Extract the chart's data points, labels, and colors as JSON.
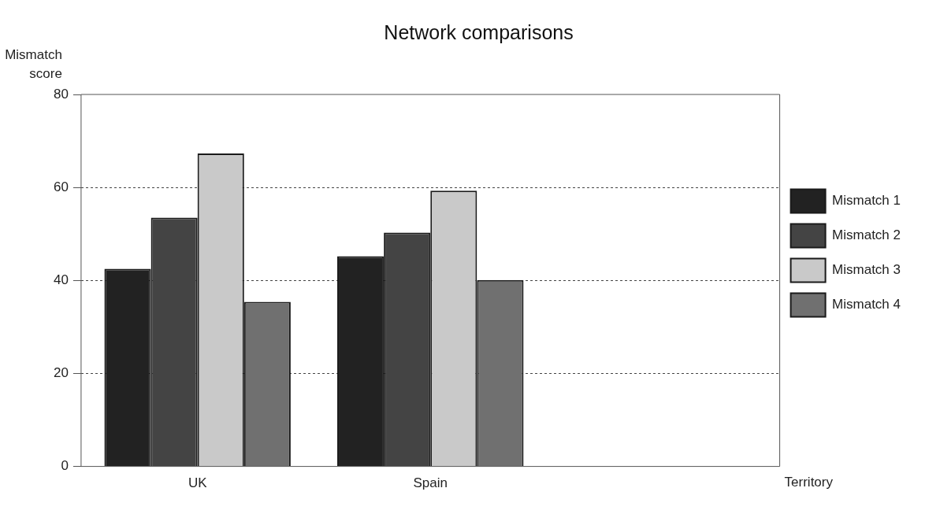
{
  "chart_data": {
    "type": "bar",
    "title": "Network comparisons",
    "xlabel": "Territory",
    "ylabel": "Mismatch score",
    "categories": [
      "UK",
      "Spain",
      null
    ],
    "series": [
      {
        "name": "Mismatch 1",
        "color": "#222222",
        "values": [
          42.5,
          45.2,
          null
        ]
      },
      {
        "name": "Mismatch 2",
        "color": "#444444",
        "values": [
          53.5,
          50.3,
          null
        ]
      },
      {
        "name": "Mismatch 3",
        "color": "#c9c9c9",
        "values": [
          67.3,
          59.3,
          null
        ]
      },
      {
        "name": "Mismatch 4",
        "color": "#707070",
        "values": [
          35.4,
          40.1,
          null
        ]
      }
    ],
    "ylim": [
      0,
      80
    ],
    "yticks": [
      0,
      20,
      40,
      60,
      80
    ],
    "grid": "y",
    "legend": "right"
  }
}
